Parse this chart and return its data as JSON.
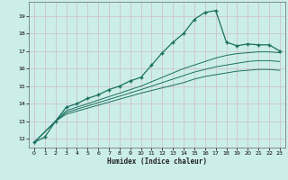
{
  "xlabel": "Humidex (Indice chaleur)",
  "bg_color": "#cceee8",
  "grid_color": "#ccbbcc",
  "line_color": "#1a7060",
  "xlim": [
    -0.5,
    23.5
  ],
  "ylim": [
    11.5,
    19.8
  ],
  "xticks": [
    0,
    1,
    2,
    3,
    4,
    5,
    6,
    7,
    8,
    9,
    10,
    11,
    12,
    13,
    14,
    15,
    16,
    17,
    18,
    19,
    20,
    21,
    22,
    23
  ],
  "yticks": [
    12,
    13,
    14,
    15,
    16,
    17,
    18,
    19
  ],
  "curve1_x": [
    0,
    1,
    2,
    3,
    4,
    5,
    6,
    7,
    8,
    9,
    10,
    11,
    12,
    13,
    14,
    15,
    16,
    17,
    18,
    19,
    20,
    21,
    22,
    23
  ],
  "curve1_y": [
    11.8,
    12.1,
    13.0,
    13.8,
    14.0,
    14.3,
    14.5,
    14.8,
    15.0,
    15.3,
    15.5,
    16.2,
    16.9,
    17.5,
    18.0,
    18.8,
    19.2,
    19.3,
    17.5,
    17.3,
    17.4,
    17.35,
    17.35,
    17.0
  ],
  "curve2_x": [
    0,
    2,
    3,
    10,
    14,
    15,
    16,
    17,
    18,
    19,
    20,
    21,
    22,
    23
  ],
  "curve2_y": [
    11.8,
    13.0,
    13.6,
    15.0,
    16.0,
    16.2,
    16.4,
    16.6,
    16.75,
    16.85,
    16.9,
    16.95,
    16.95,
    16.9
  ],
  "curve3_x": [
    0,
    2,
    3,
    10,
    14,
    15,
    16,
    17,
    18,
    19,
    20,
    21,
    22,
    23
  ],
  "curve3_y": [
    11.8,
    13.0,
    13.5,
    14.8,
    15.6,
    15.8,
    15.95,
    16.1,
    16.2,
    16.3,
    16.4,
    16.45,
    16.45,
    16.4
  ],
  "curve4_x": [
    0,
    2,
    3,
    10,
    14,
    15,
    16,
    17,
    18,
    19,
    20,
    21,
    22,
    23
  ],
  "curve4_y": [
    11.8,
    13.0,
    13.4,
    14.6,
    15.2,
    15.4,
    15.55,
    15.65,
    15.75,
    15.85,
    15.9,
    15.95,
    15.95,
    15.9
  ]
}
